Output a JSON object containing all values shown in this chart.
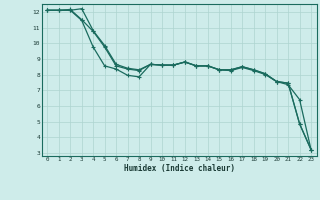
{
  "xlabel": "Humidex (Indice chaleur)",
  "bg_color": "#ceecea",
  "grid_color": "#aed4d0",
  "line_color": "#1a6b5e",
  "xlim": [
    -0.5,
    23.5
  ],
  "ylim": [
    2.8,
    12.5
  ],
  "yticks": [
    3,
    4,
    5,
    6,
    7,
    8,
    9,
    10,
    11,
    12
  ],
  "xticks": [
    0,
    1,
    2,
    3,
    4,
    5,
    6,
    7,
    8,
    9,
    10,
    11,
    12,
    13,
    14,
    15,
    16,
    17,
    18,
    19,
    20,
    21,
    22,
    23
  ],
  "line1_x": [
    0,
    1,
    2,
    3,
    4,
    5,
    6,
    7,
    8,
    9,
    10,
    11,
    12,
    13,
    14,
    15,
    16,
    17,
    18,
    19,
    20,
    21,
    22,
    23
  ],
  "line1_y": [
    12.1,
    12.1,
    12.1,
    12.2,
    10.8,
    9.85,
    8.65,
    8.4,
    8.3,
    8.65,
    8.6,
    8.6,
    8.8,
    8.55,
    8.55,
    8.3,
    8.3,
    8.5,
    8.3,
    8.05,
    7.55,
    7.45,
    4.85,
    3.2
  ],
  "line2_x": [
    0,
    1,
    2,
    3,
    4,
    5,
    6,
    7,
    8,
    9,
    10,
    11,
    12,
    13,
    14,
    15,
    16,
    17,
    18,
    19,
    20,
    21,
    22,
    23
  ],
  "line2_y": [
    12.1,
    12.1,
    12.15,
    11.5,
    10.75,
    9.75,
    8.55,
    8.35,
    8.25,
    8.65,
    8.6,
    8.6,
    8.8,
    8.55,
    8.55,
    8.3,
    8.3,
    8.5,
    8.3,
    8.05,
    7.55,
    7.45,
    4.85,
    3.2
  ],
  "line3_x": [
    0,
    1,
    2,
    3,
    4,
    5,
    6,
    7,
    8,
    9,
    10,
    11,
    12,
    13,
    14,
    15,
    16,
    17,
    18,
    19,
    20,
    21,
    22,
    23
  ],
  "line3_y": [
    12.1,
    12.1,
    12.1,
    11.45,
    9.75,
    8.55,
    8.35,
    7.95,
    7.85,
    8.65,
    8.6,
    8.6,
    8.8,
    8.55,
    8.55,
    8.3,
    8.25,
    8.45,
    8.25,
    8.0,
    7.55,
    7.35,
    6.4,
    3.2
  ]
}
